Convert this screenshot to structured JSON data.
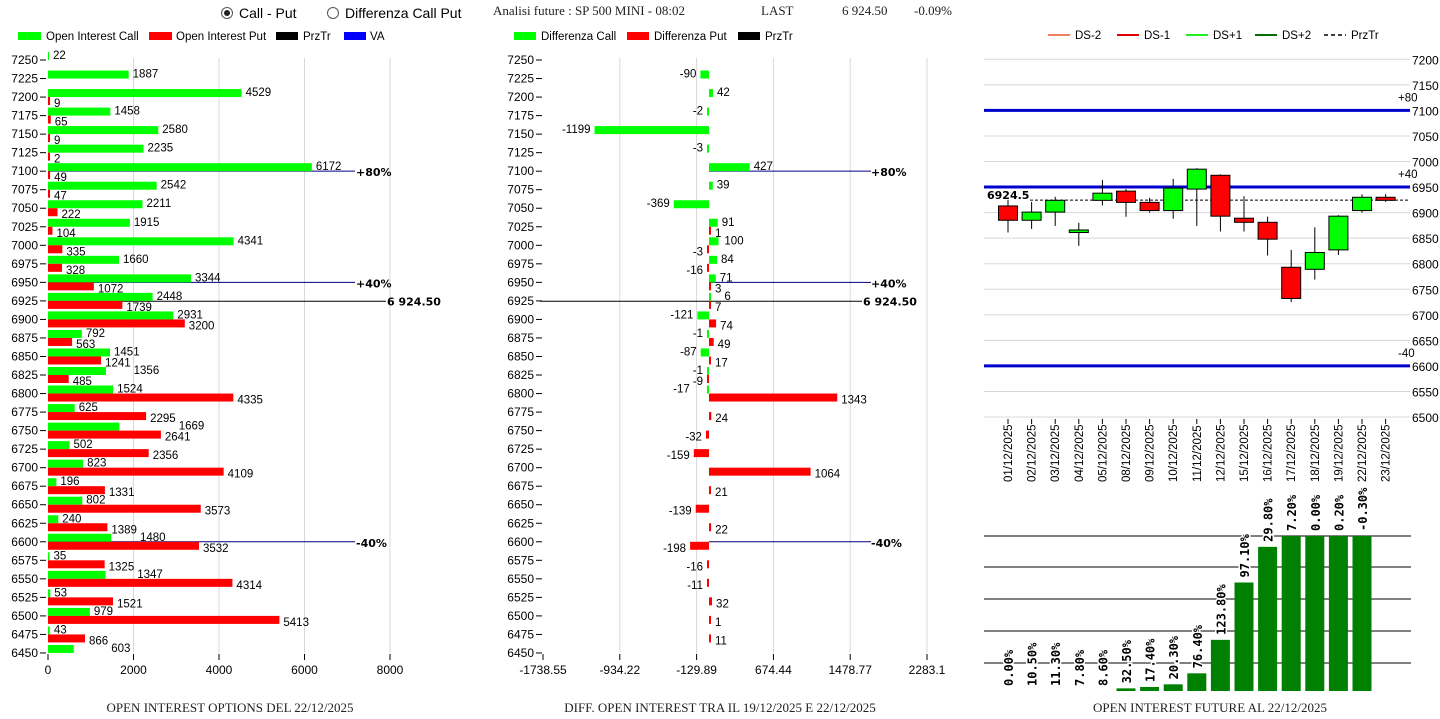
{
  "header": {
    "radio_call_put": "Call - Put",
    "radio_diff": "Differenza Call Put",
    "selected": "Call - Put",
    "title": "Analisi future : SP 500 MINI - 08:02",
    "last_label": "LAST",
    "last_value": "6 924.50",
    "change": "-0.09%"
  },
  "colors": {
    "call": "#00ff00",
    "put": "#ff0000",
    "przTr": "#000000",
    "va": "#0000ff",
    "ds_m2": "#f08060",
    "ds_m1": "#e00000",
    "ds_p1": "#22ee22",
    "ds_p2": "#007000",
    "oi_bar": "#008000"
  },
  "chart_data": [
    {
      "type": "bar",
      "orientation": "horizontal",
      "title": "OPEN INTEREST OPTIONS DEL 22/12/2025",
      "legend": [
        "Open Interest Call",
        "Open Interest Put",
        "PrzTr",
        "VA"
      ],
      "legend_placement": "top",
      "strikes": [
        7250,
        7225,
        7200,
        7175,
        7150,
        7125,
        7100,
        7075,
        7050,
        7025,
        7000,
        6975,
        6950,
        6925,
        6900,
        6875,
        6850,
        6825,
        6800,
        6775,
        6750,
        6725,
        6700,
        6675,
        6650,
        6625,
        6600,
        6575,
        6550,
        6525,
        6500,
        6475,
        6450
      ],
      "strike_labels": [
        "7250",
        "7225",
        "7200",
        "7175",
        "7150",
        "7125",
        "7100",
        "7075",
        "7050",
        "7025",
        "7000",
        "6975",
        "6950",
        "6925",
        "6900",
        "6875",
        "6850",
        "6825",
        "6800",
        "6775",
        "6750",
        "6725",
        "6700",
        "6675",
        "6650",
        "6625",
        "6600",
        "6575",
        "6550",
        "6525",
        "6500",
        "6475",
        "6450"
      ],
      "calls": [
        22,
        1887,
        4529,
        1458,
        2580,
        2235,
        6172,
        2542,
        2211,
        1915,
        4341,
        1660,
        3344,
        2448,
        2931,
        792,
        1451,
        1356,
        1524,
        625,
        1669,
        502,
        823,
        196,
        802,
        240,
        1480,
        35,
        1347,
        53,
        979,
        43,
        603
      ],
      "puts": [
        null,
        null,
        9,
        65,
        9,
        2,
        49,
        47,
        222,
        104,
        335,
        328,
        1072,
        1739,
        3200,
        563,
        1241,
        485,
        4335,
        2295,
        2641,
        2356,
        4109,
        1331,
        3573,
        1389,
        3532,
        1325,
        4314,
        1521,
        5413,
        866,
        null
      ],
      "xlim": [
        0,
        8000
      ],
      "xticks": [
        "0",
        "2000",
        "4000",
        "6000",
        "8000"
      ],
      "levels": [
        {
          "strike": 7100,
          "label": "+80%"
        },
        {
          "strike": 6950,
          "label": "+40%"
        },
        {
          "strike": 6600,
          "label": "-40%"
        }
      ],
      "przTr": {
        "value": 6924.5,
        "label": "6 924.50"
      }
    },
    {
      "type": "bar",
      "orientation": "horizontal",
      "title": "DIFF. OPEN INTEREST TRA IL 19/12/2025 E 22/12/2025",
      "legend": [
        "Differenza Call",
        "Differenza Put",
        "PrzTr"
      ],
      "legend_placement": "top",
      "calls": [
        null,
        -90,
        42,
        -2,
        -1199,
        -3,
        427,
        39,
        -369,
        91,
        100,
        84,
        71,
        6,
        -121,
        -1,
        -87,
        -1,
        -17,
        null,
        null,
        null,
        null,
        null,
        null,
        null,
        null,
        null,
        null,
        null,
        null,
        null,
        null
      ],
      "puts": [
        null,
        null,
        null,
        null,
        null,
        null,
        null,
        null,
        null,
        1,
        -3,
        -16,
        3,
        7,
        74,
        49,
        17,
        -9,
        1343,
        24,
        -32,
        -159,
        1064,
        21,
        -139,
        22,
        -198,
        -16,
        -11,
        32,
        1,
        11,
        null
      ],
      "xlim": [
        -1738.55,
        2283.1
      ],
      "xticks": [
        "-1738.55",
        "-934.22",
        "-129.89",
        "674.44",
        "1478.77",
        "2283.1"
      ],
      "xtick_values": [
        -1738.55,
        -934.22,
        -129.89,
        674.44,
        1478.77,
        2283.1
      ],
      "levels": [
        {
          "strike": 7100,
          "label": "+80%"
        },
        {
          "strike": 6950,
          "label": "+40%"
        },
        {
          "strike": 6600,
          "label": "-40%"
        }
      ],
      "przTr": {
        "value": 6924.5,
        "label": "6 924.50"
      }
    },
    {
      "type": "candlestick",
      "legend": [
        "DS-2",
        "DS-1",
        "DS+1",
        "DS+2",
        "PrzTr"
      ],
      "legend_placement": "top",
      "dates": [
        "01/12/2025",
        "02/12/2025",
        "03/12/2025",
        "04/12/2025",
        "05/12/2025",
        "08/12/2025",
        "09/12/2025",
        "10/12/2025",
        "11/12/2025",
        "12/12/2025",
        "15/12/2025",
        "16/12/2025",
        "17/12/2025",
        "18/12/2025",
        "19/12/2025",
        "22/12/2025",
        "23/12/2025"
      ],
      "open": [
        6913,
        6885,
        6901,
        6861,
        6924,
        6942,
        6920,
        6904,
        6946,
        6973,
        6889,
        6881,
        6793,
        6789,
        6827,
        6904,
        6930
      ],
      "high": [
        6925,
        6921,
        6931,
        6880,
        6964,
        6946,
        6929,
        6966,
        6987,
        6975,
        6932,
        6892,
        6827,
        6871,
        6895,
        6936,
        6936
      ],
      "low": [
        6861,
        6868,
        6874,
        6835,
        6914,
        6892,
        6900,
        6888,
        6874,
        6863,
        6863,
        6816,
        6725,
        6769,
        6817,
        6900,
        6921
      ],
      "close": [
        6885,
        6901,
        6924,
        6866,
        6938,
        6920,
        6904,
        6948,
        6985,
        6893,
        6881,
        6848,
        6732,
        6822,
        6893,
        6930,
        6924
      ],
      "ylim": [
        6500,
        7200
      ],
      "yticks": [
        "7200",
        "7150",
        "7100",
        "7050",
        "7000",
        "6950",
        "6900",
        "6850",
        "6800",
        "6750",
        "6700",
        "6650",
        "6600",
        "6550",
        "6500"
      ],
      "levels": [
        {
          "value": 7100,
          "label": "+80"
        },
        {
          "value": 6950,
          "label": "+40"
        },
        {
          "value": 6600,
          "label": "-40"
        }
      ],
      "przTr": {
        "value": 6924.5,
        "label": "6924.5"
      }
    },
    {
      "type": "bar",
      "title": "OPEN INTEREST FUTURE AL 22/12/2025",
      "categories": [
        "01/12/2025",
        "02/12/2025",
        "03/12/2025",
        "04/12/2025",
        "05/12/2025",
        "08/12/2025",
        "09/12/2025",
        "10/12/2025",
        "11/12/2025",
        "12/12/2025",
        "15/12/2025",
        "16/12/2025",
        "17/12/2025",
        "18/12/2025",
        "19/12/2025",
        "22/12/2025"
      ],
      "labels": [
        "0.00%",
        "10.50%",
        "11.30%",
        "7.80%",
        "8.60%",
        "32.50%",
        "17.40%",
        "20.30%",
        "76.40%",
        "123.80%",
        "97.10%",
        "29.80%",
        "7.20%",
        "0.00%",
        "0.20%",
        "-0.30%"
      ],
      "relative_values": [
        0,
        0,
        0,
        0,
        0,
        0.017,
        0.026,
        0.043,
        0.114,
        0.33,
        0.7,
        0.93,
        1,
        1,
        1,
        1
      ]
    }
  ]
}
